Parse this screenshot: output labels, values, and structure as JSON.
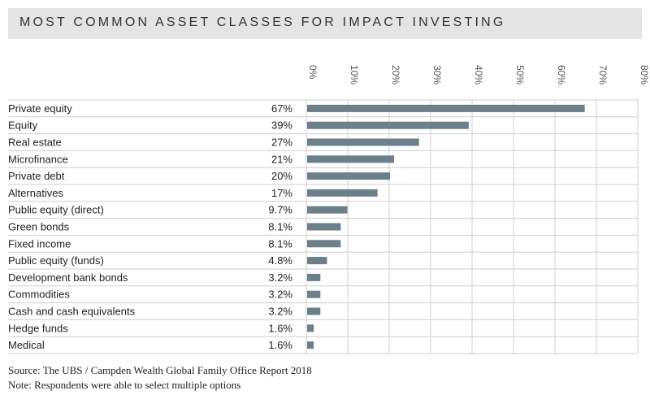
{
  "chart_data": {
    "type": "bar",
    "orientation": "horizontal",
    "title": "MOST COMMON ASSET CLASSES FOR IMPACT INVESTING",
    "categories": [
      "Private equity",
      "Equity",
      "Real estate",
      "Microfinance",
      "Private debt",
      "Alternatives",
      "Public equity (direct)",
      "Green bonds",
      "Fixed income",
      "Public equity (funds)",
      "Development bank bonds",
      "Commodities",
      "Cash and cash equivalents",
      "Hedge funds",
      "Medical"
    ],
    "values": [
      67,
      39,
      27,
      21,
      20,
      17,
      9.7,
      8.1,
      8.1,
      4.8,
      3.2,
      3.2,
      3.2,
      1.6,
      1.6
    ],
    "value_labels": [
      "67%",
      "39%",
      "27%",
      "21%",
      "20%",
      "17%",
      "9.7%",
      "8.1%",
      "8.1%",
      "4.8%",
      "3.2%",
      "3.2%",
      "3.2%",
      "1.6%",
      "1.6%"
    ],
    "xlim": [
      0,
      80
    ],
    "xticks": [
      0,
      10,
      20,
      30,
      40,
      50,
      60,
      70,
      80
    ],
    "xtick_labels": [
      "0%",
      "10%",
      "20%",
      "30%",
      "40%",
      "50%",
      "60%",
      "70%",
      "80%"
    ],
    "xlabel": "",
    "ylabel": "",
    "grid": true,
    "legend": false,
    "bar_color": "#6b8088",
    "grid_color": "#cfcfcf"
  },
  "footer": {
    "source": "Source: The UBS / Campden Wealth Global Family Office Report 2018",
    "note": "Note: Respondents were able to select multiple options"
  }
}
